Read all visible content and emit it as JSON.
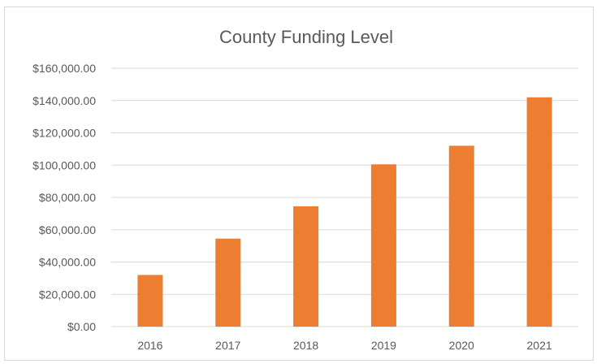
{
  "chart_data": {
    "type": "bar",
    "title": "County Funding Level",
    "categories": [
      "2016",
      "2017",
      "2018",
      "2019",
      "2020",
      "2021"
    ],
    "values": [
      32000,
      54500,
      74500,
      100500,
      112000,
      142000
    ],
    "ylim": [
      0,
      160000
    ],
    "y_ticks": [
      0,
      20000,
      40000,
      60000,
      80000,
      100000,
      120000,
      140000,
      160000
    ],
    "y_tick_labels": [
      "$0.00",
      "$20,000.00",
      "$40,000.00",
      "$60,000.00",
      "$80,000.00",
      "$100,000.00",
      "$120,000.00",
      "$140,000.00",
      "$160,000.00"
    ],
    "grid": true,
    "legend": "none",
    "bar_color": "#ed7d31",
    "grid_color": "#d9d9d9",
    "text_color": "#595959"
  }
}
